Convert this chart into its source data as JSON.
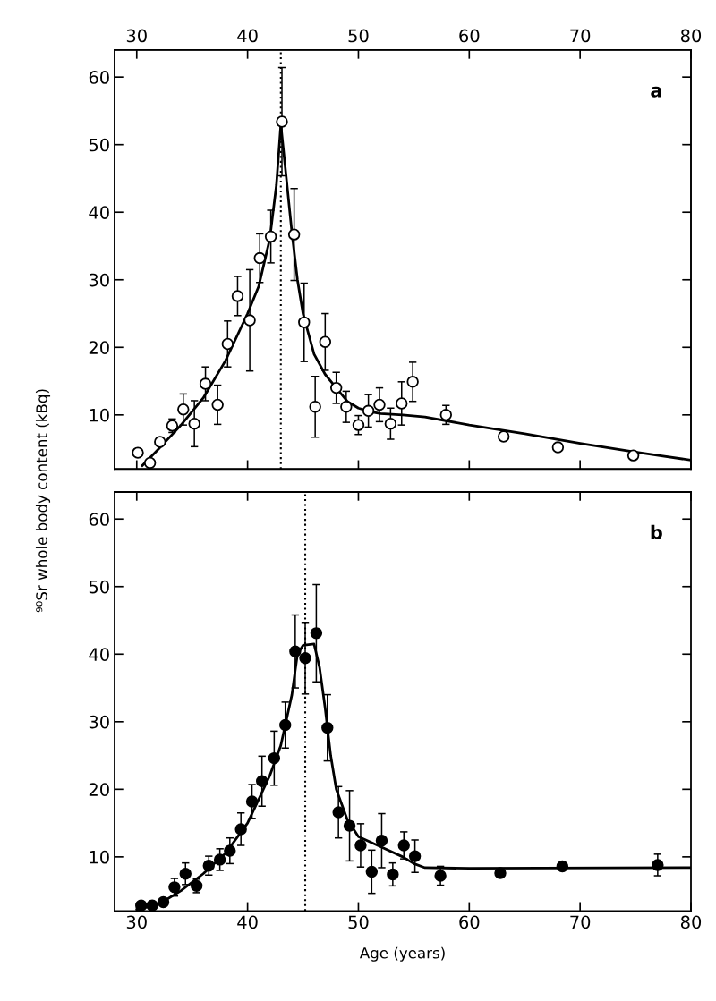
{
  "chart_data": [
    {
      "type": "scatter",
      "xlim": [
        28,
        80
      ],
      "ylim": [
        2,
        64
      ],
      "yticks": [
        10,
        20,
        30,
        40,
        50,
        60
      ],
      "x2lim": [
        28,
        80
      ],
      "x2ticks": [
        30,
        40,
        50,
        60,
        70,
        80
      ],
      "tick_labels": "y",
      "grid": false,
      "legend": false,
      "annotations": [
        "a"
      ],
      "ref_lines": [
        {
          "axis": "x",
          "value": 43,
          "line_style": "dotted",
          "color": "#000000"
        }
      ],
      "series": [
        {
          "marker": "circle",
          "color": "#000000",
          "x": [
            30.1,
            31.2,
            32.1,
            33.2,
            34.2,
            35.2,
            36.2,
            37.3,
            38.2,
            39.1,
            40.2,
            41.1,
            42.1,
            43.1,
            44.2,
            45.1,
            46.1,
            47.0,
            48.0,
            48.9,
            50.0,
            50.9,
            51.9,
            52.9,
            53.9,
            54.9,
            57.9,
            63.1,
            68.0,
            74.8
          ],
          "values": [
            4.4,
            2.9,
            6.0,
            8.4,
            10.8,
            8.7,
            14.6,
            11.5,
            20.5,
            27.6,
            24.0,
            33.2,
            36.4,
            53.4,
            36.7,
            23.7,
            11.2,
            20.8,
            14.0,
            11.2,
            8.5,
            10.6,
            11.5,
            8.7,
            11.7,
            14.9,
            10.0,
            6.8,
            5.2,
            4.0
          ],
          "errors": [
            null,
            null,
            null,
            1.0,
            2.3,
            3.4,
            2.5,
            2.9,
            3.4,
            2.9,
            7.5,
            3.6,
            3.9,
            8.0,
            6.8,
            5.8,
            4.5,
            4.2,
            2.3,
            2.3,
            1.4,
            2.4,
            2.5,
            2.3,
            3.2,
            2.9,
            1.4,
            null,
            null,
            null
          ]
        },
        {
          "type": "line",
          "color": "#000000",
          "x": [
            30.5,
            32,
            34,
            36,
            38,
            40,
            41,
            42,
            42.6,
            43,
            43.5,
            44,
            44.5,
            45,
            46,
            47,
            48,
            49,
            50,
            51,
            52,
            54,
            56,
            60,
            65,
            70,
            75,
            80
          ],
          "values": [
            2.5,
            5,
            8.5,
            12.5,
            18,
            25,
            29,
            36,
            44,
            53,
            45,
            37,
            30,
            25,
            19,
            16,
            14,
            12,
            11,
            10.5,
            10.2,
            10,
            9.7,
            8.5,
            7.2,
            5.8,
            4.5,
            3.3
          ]
        }
      ]
    },
    {
      "type": "scatter",
      "xlim": [
        28,
        80
      ],
      "xticks": [
        30,
        40,
        50,
        60,
        70,
        80
      ],
      "ylim": [
        2,
        64
      ],
      "yticks": [
        10,
        20,
        30,
        40,
        50,
        60
      ],
      "grid": false,
      "legend": false,
      "xlabel": "Age (years)",
      "ylabel": "⁹⁰Sr whole body content (kBq)",
      "annotations": [
        "b"
      ],
      "ref_lines": [
        {
          "axis": "x",
          "value": 45.2,
          "line_style": "dotted",
          "color": "#000000"
        }
      ],
      "series": [
        {
          "marker": "circle",
          "color": "#000000",
          "x": [
            30.4,
            31.4,
            32.4,
            33.4,
            34.4,
            35.4,
            36.5,
            37.5,
            38.4,
            39.4,
            40.4,
            41.3,
            42.4,
            43.4,
            44.3,
            45.2,
            46.2,
            47.2,
            48.2,
            49.2,
            50.2,
            51.2,
            52.1,
            53.1,
            54.1,
            55.1,
            57.4,
            62.8,
            68.4,
            77.0
          ],
          "values": [
            2.8,
            2.8,
            3.3,
            5.5,
            7.5,
            5.7,
            8.7,
            9.6,
            10.9,
            14.1,
            18.2,
            21.2,
            24.6,
            29.5,
            40.4,
            39.4,
            43.1,
            29.1,
            16.6,
            14.6,
            11.7,
            7.8,
            12.4,
            7.4,
            11.7,
            10.1,
            7.2,
            7.6,
            8.6,
            8.8
          ],
          "errors": [
            null,
            null,
            null,
            1.3,
            1.6,
            1.0,
            1.4,
            1.6,
            1.9,
            2.4,
            2.5,
            3.7,
            4.0,
            3.4,
            5.4,
            5.3,
            7.2,
            4.9,
            3.8,
            5.2,
            3.2,
            3.2,
            4.0,
            1.7,
            2.0,
            2.4,
            1.4,
            null,
            null,
            1.6
          ]
        },
        {
          "type": "line",
          "color": "#000000",
          "x": [
            30,
            32,
            34,
            36,
            38,
            40,
            42,
            43,
            44,
            44.5,
            45,
            46,
            46.5,
            47,
            47.5,
            48,
            49,
            50,
            52,
            54,
            55,
            56,
            60,
            80
          ],
          "values": [
            2.2,
            3,
            5,
            7.5,
            10.5,
            15,
            22,
            26.5,
            34,
            40,
            41.3,
            41.5,
            38,
            32,
            25,
            20,
            15.5,
            13,
            11.5,
            10,
            9,
            8.4,
            8.3,
            8.4
          ]
        }
      ]
    }
  ]
}
